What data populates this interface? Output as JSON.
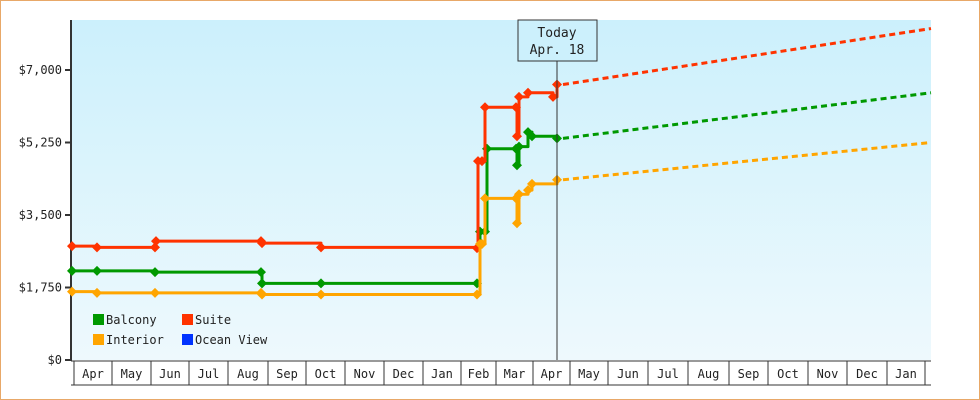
{
  "chart_data": {
    "type": "line",
    "title": "",
    "xlabel": "",
    "ylabel": "",
    "ylim": [
      0,
      7000
    ],
    "y_ticks": [
      "$0",
      "$1,750",
      "$3,500",
      "$5,250",
      "$7,000"
    ],
    "y_tick_values": [
      0,
      1750,
      3500,
      5250,
      7000
    ],
    "x_tick_labels": [
      "Apr",
      "May",
      "Jun",
      "Jul",
      "Aug",
      "Sep",
      "Oct",
      "Nov",
      "Dec",
      "Jan",
      "Feb",
      "Mar",
      "Apr",
      "May",
      "Jun",
      "Jul",
      "Aug",
      "Sep",
      "Oct",
      "Nov",
      "Dec",
      "Jan"
    ],
    "grid": false,
    "legend_position": "lower-left",
    "annotation": {
      "line1": "Today",
      "line2": "Apr. 18"
    },
    "series": [
      {
        "name": "Balcony",
        "color": "#009900",
        "style": "step",
        "points": [
          [
            "Apr 1",
            2150
          ],
          [
            "Apr 20",
            2150
          ],
          [
            "Jun 1",
            2120
          ],
          [
            "Aug 15",
            2120
          ],
          [
            "Aug 16",
            1850
          ],
          [
            "Oct 1",
            1850
          ],
          [
            "Feb 5",
            1850
          ],
          [
            "Feb 7",
            3100
          ],
          [
            "Feb 12",
            3100
          ],
          [
            "Feb 14",
            5100
          ],
          [
            "Mar 10",
            5100
          ],
          [
            "Mar 11",
            4700
          ],
          [
            "Mar 12",
            5150
          ],
          [
            "Mar 15",
            5500
          ],
          [
            "Mar 20",
            5400
          ],
          [
            "Apr 18",
            5350
          ]
        ],
        "projection": [
          [
            "Apr 18",
            5350
          ],
          [
            "Jan end",
            6450
          ]
        ]
      },
      {
        "name": "Suite",
        "color": "#ff3300",
        "style": "step",
        "points": [
          [
            "Apr 1",
            2750
          ],
          [
            "Apr 20",
            2720
          ],
          [
            "Jun 1",
            2720
          ],
          [
            "Jun 2",
            2870
          ],
          [
            "Aug 15",
            2870
          ],
          [
            "Aug 16",
            2820
          ],
          [
            "Oct 1",
            2720
          ],
          [
            "Feb 5",
            2700
          ],
          [
            "Feb 6",
            4800
          ],
          [
            "Feb 10",
            4800
          ],
          [
            "Feb 12",
            6100
          ],
          [
            "Mar 10",
            6100
          ],
          [
            "Mar 11",
            5400
          ],
          [
            "Mar 12",
            6350
          ],
          [
            "Mar 15",
            6450
          ],
          [
            "Apr 15",
            6350
          ],
          [
            "Apr 18",
            6650
          ]
        ],
        "projection": [
          [
            "Apr 18",
            6650
          ],
          [
            "Jan end",
            8000
          ]
        ]
      },
      {
        "name": "Interior",
        "color": "#ffa500",
        "style": "step",
        "points": [
          [
            "Apr 1",
            1650
          ],
          [
            "Apr 20",
            1620
          ],
          [
            "Jun 1",
            1620
          ],
          [
            "Aug 15",
            1620
          ],
          [
            "Aug 16",
            1580
          ],
          [
            "Oct 1",
            1580
          ],
          [
            "Feb 5",
            1580
          ],
          [
            "Feb 7",
            2800
          ],
          [
            "Feb 10",
            2800
          ],
          [
            "Feb 12",
            3900
          ],
          [
            "Mar 10",
            3900
          ],
          [
            "Mar 11",
            3300
          ],
          [
            "Mar 12",
            4000
          ],
          [
            "Mar 15",
            4100
          ],
          [
            "Mar 20",
            4250
          ],
          [
            "Apr 18",
            4350
          ]
        ],
        "projection": [
          [
            "Apr 18",
            4350
          ],
          [
            "Jan end",
            5250
          ]
        ]
      },
      {
        "name": "Ocean View",
        "color": "#0033ff",
        "style": "step",
        "points": [],
        "projection": []
      }
    ]
  },
  "legend": {
    "items": [
      {
        "label": "Balcony",
        "color": "#009900"
      },
      {
        "label": "Suite",
        "color": "#ff3300"
      },
      {
        "label": "Interior",
        "color": "#ffa500"
      },
      {
        "label": "Ocean View",
        "color": "#0033ff"
      }
    ]
  },
  "today_marker": {
    "line1": "Today",
    "line2": "Apr. 18"
  }
}
